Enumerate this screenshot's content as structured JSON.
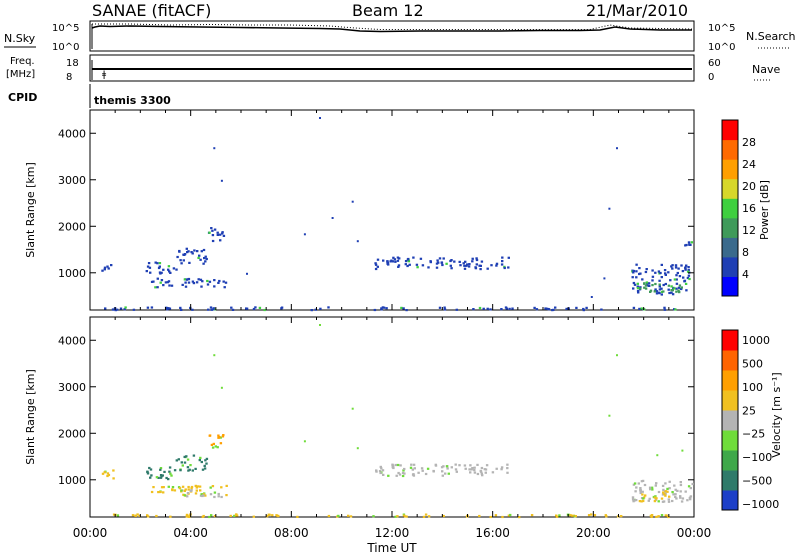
{
  "header": {
    "station": "SANAE (fitACF)",
    "beam": "Beam 12",
    "date": "21/Mar/2010"
  },
  "aux": {
    "nsky_label": "N.Sky",
    "nsearch_label": "N.Search",
    "noise_top": "10^5",
    "noise_bottom": "10^0",
    "freq_label_1": "Freq.",
    "freq_label_2": "[MHz]",
    "freq_top": "18",
    "freq_bottom": "8",
    "nave_label": "Nave",
    "nave_top": "60",
    "nave_bottom": "0",
    "cpid_label": "CPID",
    "cpid_value": "themis 3300"
  },
  "colors": {
    "ground": "#b4b4b4"
  },
  "chart_data": [
    {
      "type": "heatmap",
      "panel": "power",
      "ylabel": "Slant Range [km]",
      "xlabel": "Time UT",
      "ylim": [
        200,
        4500
      ],
      "xlim": [
        0,
        24
      ],
      "yticks": [
        1000,
        2000,
        3000,
        4000
      ],
      "xticks": [
        "00:00",
        "04:00",
        "08:00",
        "12:00",
        "16:00",
        "20:00",
        "00:00"
      ],
      "colorbar_label": "Power [dB]",
      "colorbar_ticks": [
        "4",
        "8",
        "12",
        "16",
        "20",
        "24",
        "28"
      ],
      "colorbar_colors": [
        "#0000ff",
        "#1f3fb4",
        "#3a6a8c",
        "#3f9a5a",
        "#3fcf3f",
        "#d7d72a",
        "#ff9f00",
        "#ff6a00",
        "#ff0000"
      ],
      "clusters": [
        {
          "t0": 0.4,
          "t1": 1.0,
          "r0": 1050,
          "r1": 1200,
          "color": "#1f3fb4"
        },
        {
          "t0": 2.4,
          "t1": 5.4,
          "r0": 700,
          "r1": 900,
          "color": "#1f3fb4"
        },
        {
          "t0": 2.2,
          "t1": 3.4,
          "r0": 1000,
          "r1": 1250,
          "color": "#1f3fb4"
        },
        {
          "t0": 3.4,
          "t1": 4.6,
          "r0": 1200,
          "r1": 1550,
          "color": "#1f3fb4"
        },
        {
          "t0": 4.6,
          "t1": 5.3,
          "r0": 1700,
          "r1": 2000,
          "color": "#1f3fb4"
        },
        {
          "t0": 11.3,
          "t1": 16.6,
          "r0": 1100,
          "r1": 1350,
          "color": "#1f3fb4"
        },
        {
          "t0": 21.5,
          "t1": 23.8,
          "r0": 550,
          "r1": 1200,
          "color": "#1f3fb4"
        },
        {
          "t0": 21.8,
          "t1": 23.5,
          "r0": 600,
          "r1": 800,
          "color": "#3f9a5a"
        },
        {
          "t0": 23.5,
          "t1": 23.9,
          "r0": 1600,
          "r1": 1700,
          "color": "#1f3fb4"
        },
        {
          "t0": 0.5,
          "t1": 23.5,
          "r0": 220,
          "r1": 280,
          "color": "#1f3fb4"
        }
      ],
      "scatter": [
        {
          "t": 9.1,
          "r": 4350
        },
        {
          "t": 4.9,
          "r": 3700
        },
        {
          "t": 5.2,
          "r": 3000
        },
        {
          "t": 10.4,
          "r": 2550
        },
        {
          "t": 9.6,
          "r": 2200
        },
        {
          "t": 20.6,
          "r": 2400
        },
        {
          "t": 20.9,
          "r": 3700
        },
        {
          "t": 8.5,
          "r": 1850
        },
        {
          "t": 10.6,
          "r": 1700
        },
        {
          "t": 6.2,
          "r": 1000
        },
        {
          "t": 20.4,
          "r": 900
        },
        {
          "t": 19.9,
          "r": 500
        }
      ]
    },
    {
      "type": "heatmap",
      "panel": "velocity",
      "ylabel": "Slant Range [km]",
      "xlabel": "Time UT",
      "ylim": [
        200,
        4500
      ],
      "xlim": [
        0,
        24
      ],
      "yticks": [
        1000,
        2000,
        3000,
        4000
      ],
      "xticks": [
        "00:00",
        "04:00",
        "08:00",
        "12:00",
        "16:00",
        "20:00",
        "00:00"
      ],
      "colorbar_label": "Velocity [m s⁻¹]",
      "colorbar_ticks": [
        "1000",
        "500",
        "100",
        "25",
        "−25",
        "−100",
        "−500",
        "−1000"
      ],
      "colorbar_colors": [
        "#1c3fc8",
        "#2f7a6a",
        "#3fa84a",
        "#6fdc3a",
        "#b4b4b4",
        "#f0c020",
        "#ff9f00",
        "#ff6400",
        "#ff0000"
      ],
      "clusters": [
        {
          "t0": 0.4,
          "t1": 1.0,
          "r0": 1050,
          "r1": 1250,
          "color": "#f0c020"
        },
        {
          "t0": 2.4,
          "t1": 5.4,
          "r0": 680,
          "r1": 900,
          "color": "#f0c020"
        },
        {
          "t0": 3.5,
          "t1": 5.3,
          "r0": 650,
          "r1": 800,
          "color": "#b4b4b4"
        },
        {
          "t0": 2.2,
          "t1": 3.4,
          "r0": 1000,
          "r1": 1300,
          "color": "#2f7a6a"
        },
        {
          "t0": 3.4,
          "t1": 4.6,
          "r0": 1200,
          "r1": 1550,
          "color": "#2f7a6a"
        },
        {
          "t0": 4.6,
          "t1": 5.3,
          "r0": 1700,
          "r1": 2000,
          "color": "#ff9f00"
        },
        {
          "t0": 11.3,
          "t1": 16.6,
          "r0": 1100,
          "r1": 1350,
          "color": "#b4b4b4"
        },
        {
          "t0": 21.5,
          "t1": 23.9,
          "r0": 550,
          "r1": 1000,
          "color": "#b4b4b4"
        },
        {
          "t0": 21.8,
          "t1": 23.0,
          "r0": 550,
          "r1": 800,
          "color": "#f0c020"
        },
        {
          "t0": 0.5,
          "t1": 23.5,
          "r0": 220,
          "r1": 280,
          "color": "#f0c020"
        }
      ],
      "scatter": [
        {
          "t": 9.1,
          "r": 4350
        },
        {
          "t": 4.9,
          "r": 3700
        },
        {
          "t": 5.2,
          "r": 3000
        },
        {
          "t": 10.4,
          "r": 2550
        },
        {
          "t": 20.6,
          "r": 2400
        },
        {
          "t": 20.9,
          "r": 3700
        },
        {
          "t": 8.5,
          "r": 1850
        },
        {
          "t": 10.6,
          "r": 1700
        },
        {
          "t": 22.5,
          "r": 1550
        },
        {
          "t": 23.5,
          "r": 1650
        }
      ]
    }
  ]
}
